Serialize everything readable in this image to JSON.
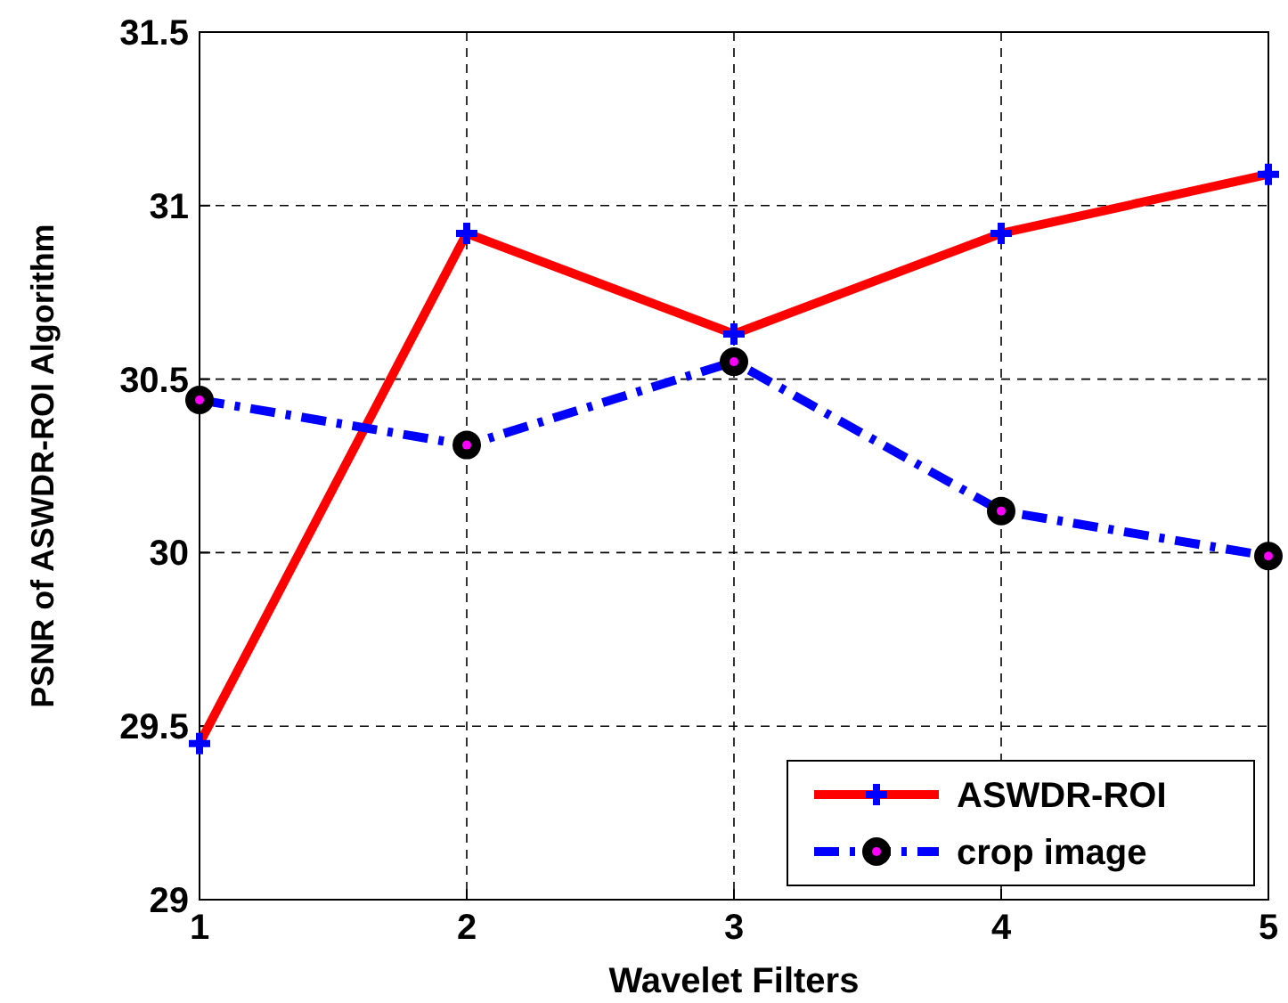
{
  "chart_data": {
    "type": "line",
    "xlabel": "Wavelet Filters",
    "ylabel": "PSNR of ASWDR-ROI Algorithm",
    "x": [
      1,
      2,
      3,
      4,
      5
    ],
    "series": [
      {
        "name": "ASWDR-ROI",
        "color": "#ff0000",
        "values": [
          29.45,
          30.92,
          30.63,
          30.92,
          31.09
        ],
        "marker": "cross",
        "line_style": "solid"
      },
      {
        "name": "crop image",
        "color": "#0000ff",
        "values": [
          30.44,
          30.31,
          30.55,
          30.12,
          29.99
        ],
        "marker": "circle",
        "line_style": "dashdot"
      }
    ],
    "xlim": [
      1,
      5
    ],
    "xticks": [
      1,
      2,
      3,
      4,
      5
    ],
    "ylim": [
      29,
      31.5
    ],
    "yticks": [
      29,
      29.5,
      30,
      30.5,
      31,
      31.5
    ],
    "grid": true,
    "legend": "bottom right"
  }
}
